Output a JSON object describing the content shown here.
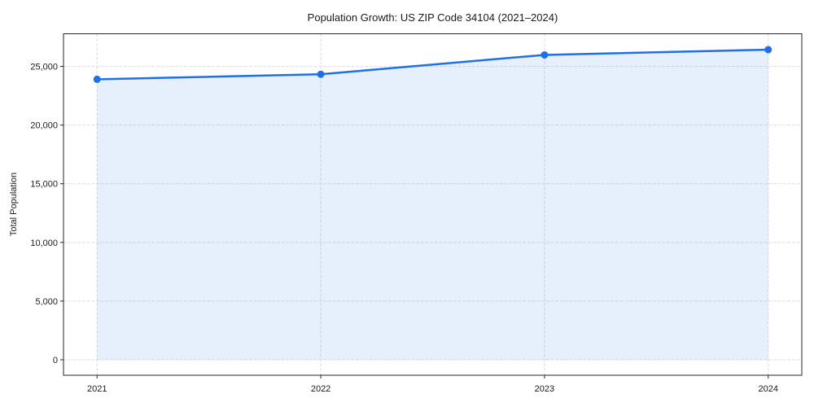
{
  "chart_data": {
    "type": "line",
    "title": "Population Growth: US ZIP Code 34104 (2021–2024)",
    "categories": [
      "2021",
      "2022",
      "2023",
      "2024"
    ],
    "x": [
      2021,
      2022,
      2023,
      2024
    ],
    "series": [
      {
        "name": "Total Population",
        "values": [
          23900,
          24330,
          25980,
          26430
        ]
      }
    ],
    "xlabel": "",
    "ylabel": "Total Population",
    "xlim": [
      2020.85,
      2024.15
    ],
    "ylim": [
      -1320,
      27780
    ],
    "xticks": [
      2021,
      2022,
      2023,
      2024
    ],
    "xtick_labels": [
      "2021",
      "2022",
      "2023",
      "2024"
    ],
    "yticks": [
      0,
      5000,
      10000,
      15000,
      20000,
      25000
    ],
    "ytick_labels": [
      "0",
      "5,000",
      "10,000",
      "15,000",
      "20,000",
      "25,000"
    ],
    "grid": true,
    "grid_style": "dashed",
    "legend": "none",
    "marker": "circle",
    "area_fill_to_zero": true,
    "colors": {
      "line": "#1f6fe5",
      "marker": "#1f6fe5",
      "fill": "rgba(31,111,229,0.11)",
      "grid": "#dbdbdb",
      "spine": "#262626",
      "tick": "#262626",
      "text": "#1a1a1a",
      "background": "#ffffff"
    }
  }
}
